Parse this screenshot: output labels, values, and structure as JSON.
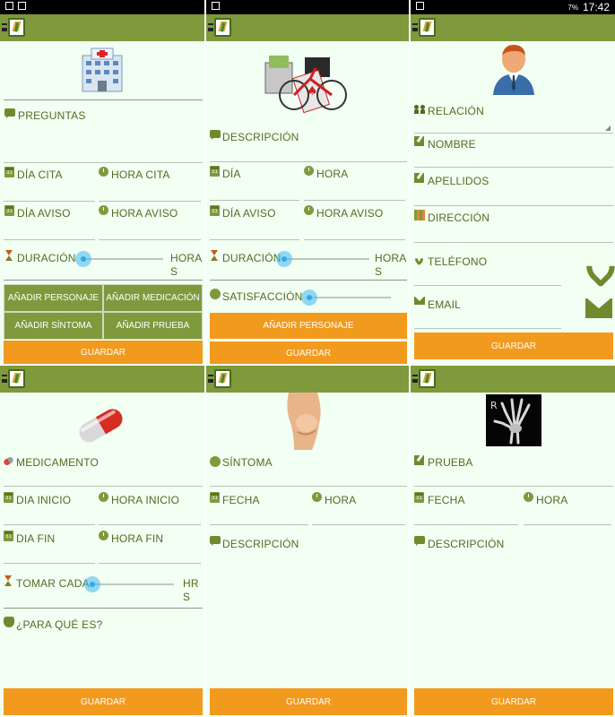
{
  "status": {
    "time": "17:42",
    "battery": "7%"
  },
  "icons": {
    "menu": "hamburger-icon",
    "logo": "app-logo-icon",
    "speech": "speech-bubble-icon",
    "calendar": "calendar-icon",
    "clock": "clock-icon",
    "hourglass": "hourglass-icon",
    "smile": "satisfaction-icon",
    "people": "people-icon",
    "edit": "edit-icon",
    "phone": "phone-icon",
    "mail": "mail-icon",
    "pill": "pill-icon"
  },
  "colors": {
    "appbar": "#7e9a3d",
    "background": "#f2fff3",
    "label": "#556b1f",
    "button_green": "#7e9a3d",
    "button_orange": "#f29a1d",
    "slider": "#35a7e8"
  },
  "panel1": {
    "preguntas": "PREGUNTAS",
    "dia_cita": "DÍA CITA",
    "hora_cita": "HORA CITA",
    "dia_aviso": "DÍA AVISO",
    "hora_aviso": "HORA AVISO",
    "duracion": "DURACIÓN",
    "horas": "HORA",
    "horas2": "S",
    "btn_personaje": "AÑADIR PERSONAJE",
    "btn_medicacion": "AÑADIR MEDICACIÓN",
    "btn_sintoma": "AÑADIR SÍNTOMA",
    "btn_prueba": "AÑADIR PRUEBA",
    "guardar": "GUARDAR"
  },
  "panel2": {
    "descripcion": "DESCRIPCIÓN",
    "dia": "DÍA",
    "hora": "HORA",
    "dia_aviso": "DÍA AVISO",
    "hora_aviso": "HORA AVISO",
    "duracion": "DURACIÓN",
    "horas": "HORA",
    "horas2": "S",
    "satisfaccion": "SATISFACCIÓN",
    "btn_personaje": "AÑADIR PERSONAJE",
    "guardar": "GUARDAR"
  },
  "panel3": {
    "relacion": "RELACIÓN",
    "nombre": "NOMBRE",
    "apellidos": "APELLIDOS",
    "direccion": "DIRECCIÓN",
    "telefono": "TELÉFONO",
    "email": "EMAIL",
    "guardar": "GUARDAR"
  },
  "panel4": {
    "medicamento": "MEDICAMENTO",
    "dia_inicio": "DIA INICIO",
    "hora_inicio": "HORA INICIO",
    "dia_fin": "DIA FIN",
    "hora_fin": "HORA FIN",
    "tomar_cada": "TOMAR CADA",
    "hrs": "HR",
    "hrs2": "S",
    "para_que": "¿PARA QUÉ ES?",
    "guardar": "GUARDAR"
  },
  "panel5": {
    "sintoma": "SÍNTOMA",
    "fecha": "FECHA",
    "hora": "HORA",
    "descripcion": "DESCRIPCIÓN",
    "guardar": "GUARDAR"
  },
  "panel6": {
    "prueba": "PRUEBA",
    "fecha": "FECHA",
    "hora": "HORA",
    "descripcion": "DESCRIPCIÓN",
    "xray_marker": "R",
    "guardar": "GUARDAR"
  }
}
